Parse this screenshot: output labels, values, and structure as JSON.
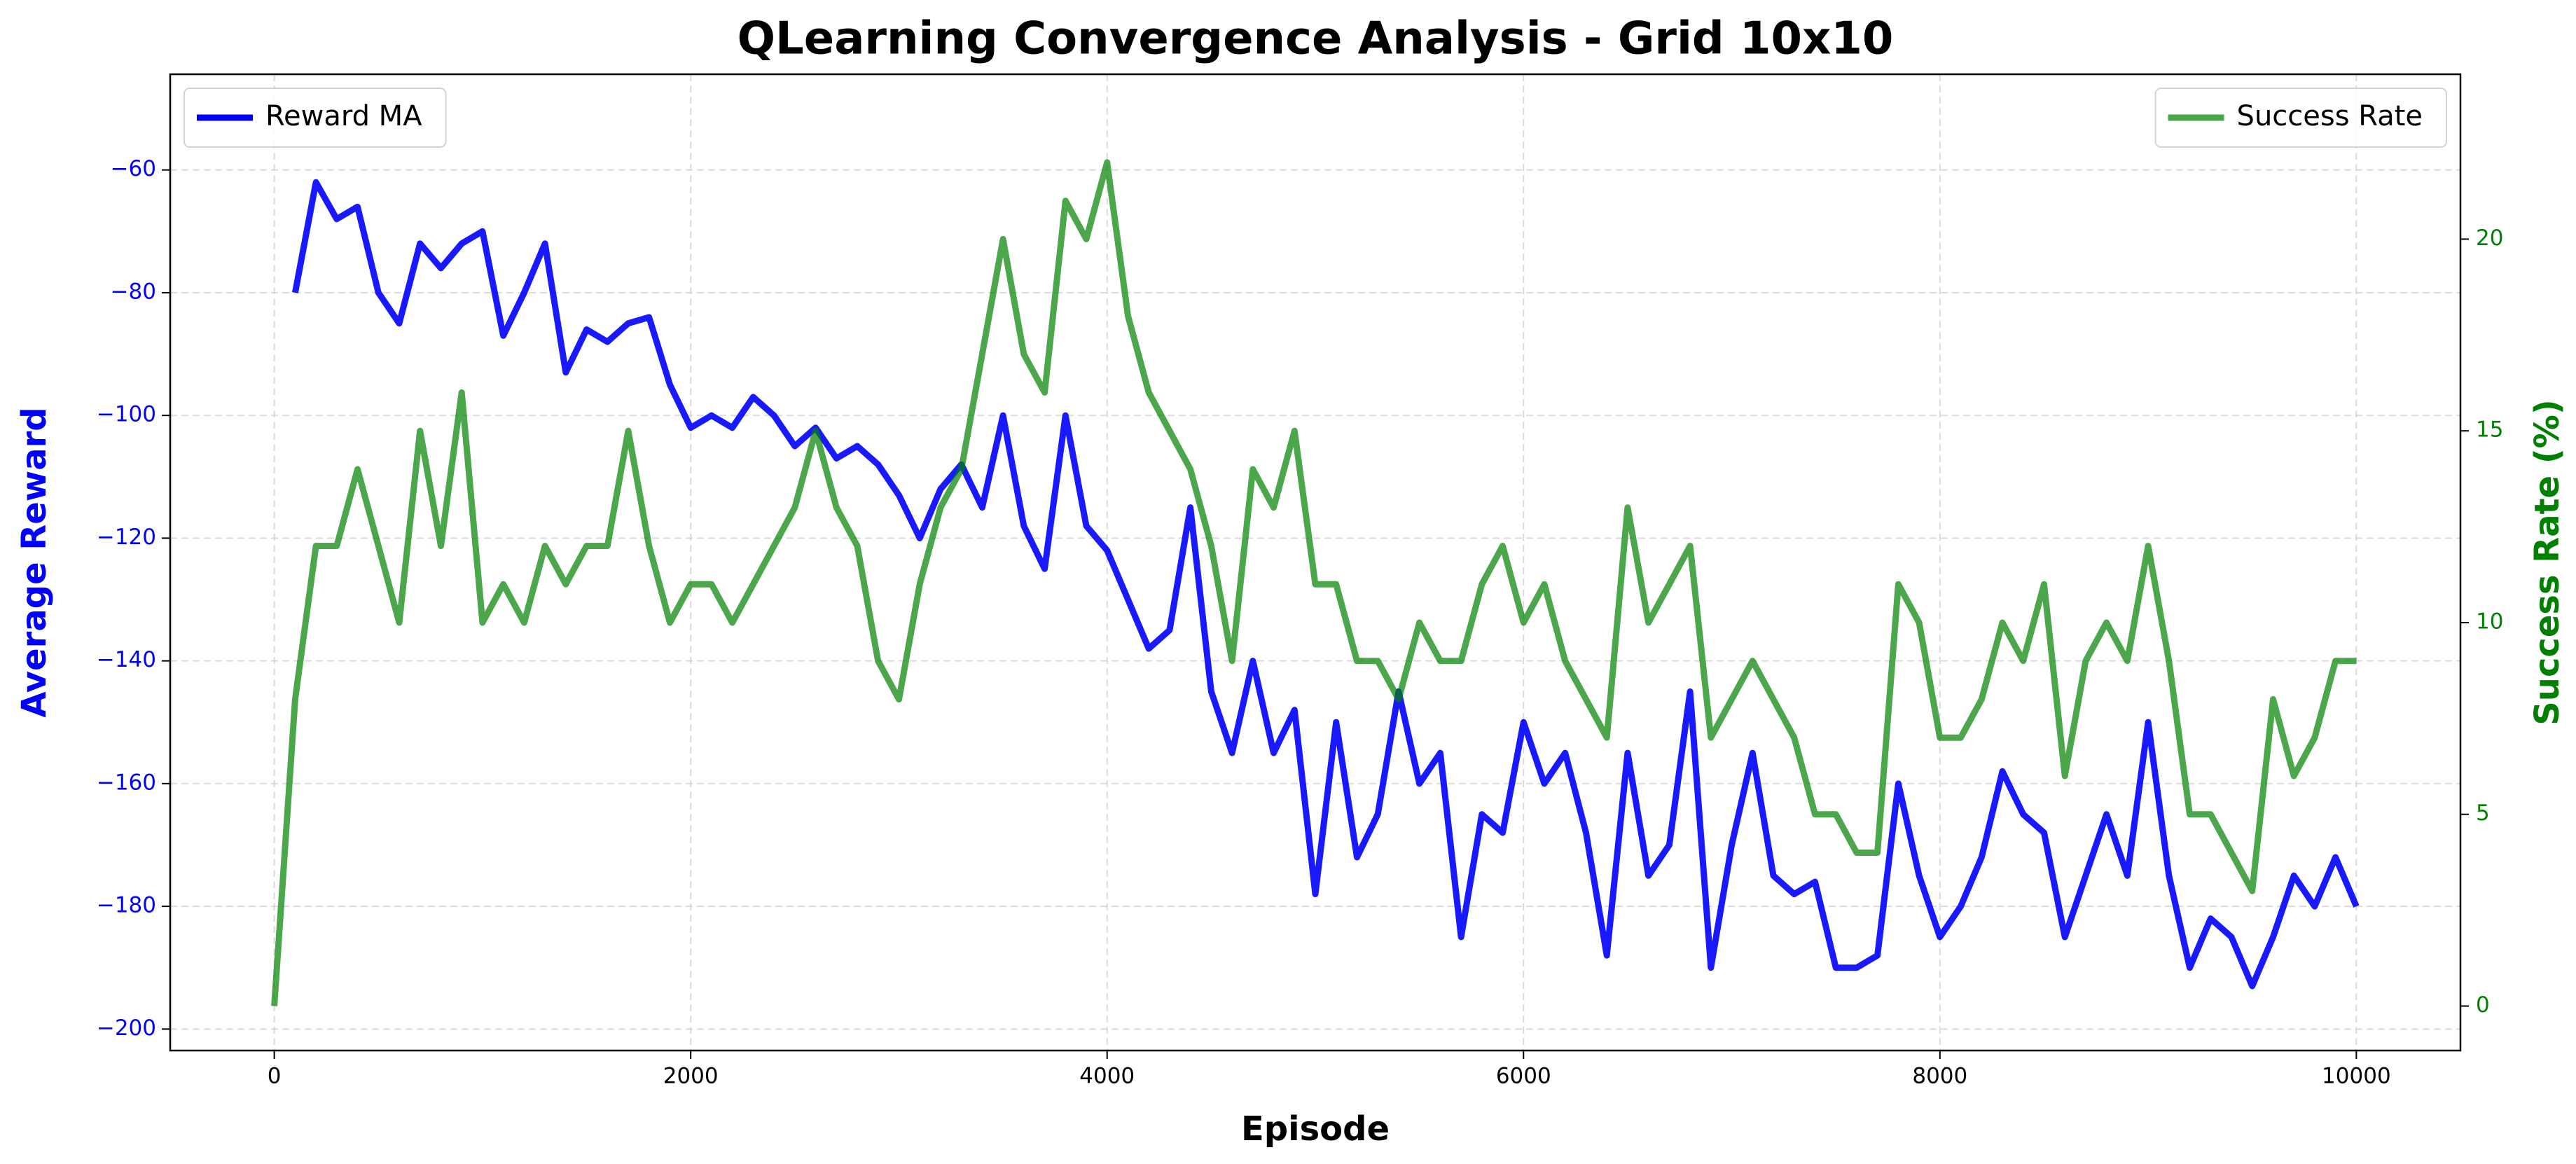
{
  "chart_data": {
    "type": "line",
    "title": "QLearning Convergence Analysis - Grid 10x10",
    "xlabel": "Episode",
    "ylabel": "Average Reward",
    "y2label": "Success Rate (%)",
    "xlim": [
      -500,
      10500
    ],
    "xticks": [
      0,
      2000,
      4000,
      6000,
      8000,
      10000
    ],
    "ylim": [
      -203.5,
      -44.4
    ],
    "yticks": [
      {
        "value": -200,
        "label": "−200"
      },
      {
        "value": -180,
        "label": "−180"
      },
      {
        "value": -160,
        "label": "−160"
      },
      {
        "value": -140,
        "label": "−140"
      },
      {
        "value": -120,
        "label": "−120"
      },
      {
        "value": -100,
        "label": "−100"
      },
      {
        "value": -80,
        "label": "−80"
      },
      {
        "value": -60,
        "label": "−60"
      }
    ],
    "y2lim": [
      -1.16,
      24.3
    ],
    "y2ticks": [
      0,
      5,
      10,
      15,
      20
    ],
    "grid": true,
    "legend": "upper left",
    "legend2": "upper right",
    "series": [
      {
        "name": "Reward MA",
        "color": "blue",
        "axis": "y",
        "x": [
          100,
          200,
          300,
          400,
          500,
          600,
          700,
          800,
          900,
          1000,
          1100,
          1200,
          1300,
          1400,
          1500,
          1600,
          1700,
          1800,
          1900,
          2000,
          2100,
          2200,
          2300,
          2400,
          2500,
          2600,
          2700,
          2800,
          2900,
          3000,
          3100,
          3200,
          3300,
          3400,
          3500,
          3600,
          3700,
          3800,
          3900,
          4000,
          4100,
          4200,
          4300,
          4400,
          4500,
          4600,
          4700,
          4800,
          4900,
          5000,
          5100,
          5200,
          5300,
          5400,
          5500,
          5600,
          5700,
          5800,
          5900,
          6000,
          6100,
          6200,
          6300,
          6400,
          6500,
          6600,
          6700,
          6800,
          6900,
          7000,
          7100,
          7200,
          7300,
          7400,
          7500,
          7600,
          7700,
          7800,
          7900,
          8000,
          8100,
          8200,
          8300,
          8400,
          8500,
          8600,
          8700,
          8800,
          8900,
          9000,
          9100,
          9200,
          9300,
          9400,
          9500,
          9600,
          9700,
          9800,
          9900,
          10000
        ],
        "values": [
          -80,
          -62,
          -68,
          -66,
          -80,
          -85,
          -72,
          -76,
          -72,
          -70,
          -87,
          -80,
          -72,
          -93,
          -86,
          -88,
          -85,
          -84,
          -95,
          -102,
          -100,
          -102,
          -97,
          -100,
          -105,
          -102,
          -107,
          -105,
          -108,
          -113,
          -120,
          -112,
          -108,
          -115,
          -100,
          -118,
          -125,
          -100,
          -118,
          -122,
          -130,
          -138,
          -135,
          -115,
          -145,
          -155,
          -140,
          -155,
          -148,
          -178,
          -150,
          -172,
          -165,
          -145,
          -160,
          -155,
          -185,
          -165,
          -168,
          -150,
          -160,
          -155,
          -168,
          -188,
          -155,
          -175,
          -170,
          -145,
          -190,
          -170,
          -155,
          -175,
          -178,
          -176,
          -190,
          -190,
          -188,
          -160,
          -175,
          -185,
          -180,
          -172,
          -158,
          -165,
          -168,
          -185,
          -175,
          -165,
          -175,
          -150,
          -175,
          -190,
          -182,
          -185,
          -193,
          -185,
          -175,
          -180,
          -172,
          -180
        ]
      },
      {
        "name": "Success Rate",
        "color": "green",
        "axis": "y2",
        "x": [
          0,
          100,
          200,
          300,
          400,
          500,
          600,
          700,
          800,
          900,
          1000,
          1100,
          1200,
          1300,
          1400,
          1500,
          1600,
          1700,
          1800,
          1900,
          2000,
          2100,
          2200,
          2300,
          2400,
          2500,
          2600,
          2700,
          2800,
          2900,
          3000,
          3100,
          3200,
          3300,
          3400,
          3500,
          3600,
          3700,
          3800,
          3900,
          4000,
          4100,
          4200,
          4300,
          4400,
          4500,
          4600,
          4700,
          4800,
          4900,
          5000,
          5100,
          5200,
          5300,
          5400,
          5500,
          5600,
          5700,
          5800,
          5900,
          6000,
          6100,
          6200,
          6300,
          6400,
          6500,
          6600,
          6700,
          6800,
          6900,
          7000,
          7100,
          7200,
          7300,
          7400,
          7500,
          7600,
          7700,
          7800,
          7900,
          8000,
          8100,
          8200,
          8300,
          8400,
          8500,
          8600,
          8700,
          8800,
          8900,
          9000,
          9100,
          9200,
          9300,
          9400,
          9500,
          9600,
          9700,
          9800,
          9900,
          10000
        ],
        "values": [
          0,
          8,
          12,
          12,
          14,
          12,
          10,
          15,
          12,
          16,
          10,
          11,
          10,
          12,
          11,
          12,
          12,
          15,
          12,
          10,
          11,
          11,
          10,
          11,
          12,
          13,
          15,
          13,
          12,
          9,
          8,
          11,
          13,
          14,
          17,
          20,
          17,
          16,
          21,
          20,
          22,
          18,
          16,
          15,
          14,
          12,
          9,
          14,
          13,
          15,
          11,
          11,
          9,
          9,
          8,
          10,
          9,
          9,
          11,
          12,
          10,
          11,
          9,
          8,
          7,
          13,
          10,
          11,
          12,
          7,
          8,
          9,
          8,
          7,
          5,
          5,
          4,
          4,
          11,
          10,
          7,
          7,
          8,
          10,
          9,
          11,
          6,
          9,
          10,
          9,
          12,
          9,
          5,
          5,
          4,
          3,
          8,
          6,
          7,
          9,
          9
        ]
      }
    ]
  }
}
